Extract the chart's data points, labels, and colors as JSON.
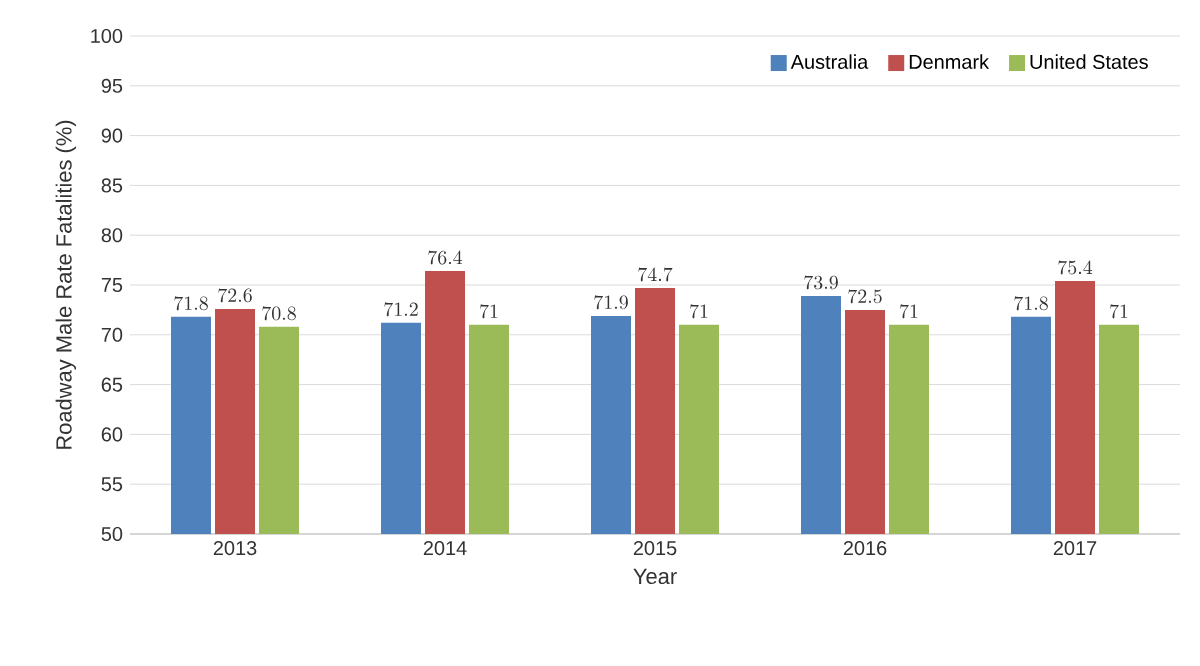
{
  "chart_data": {
    "type": "bar",
    "xlabel": "Year",
    "ylabel": "Roadway Male Rate Fatalities (%)",
    "categories": [
      "2013",
      "2014",
      "2015",
      "2016",
      "2017"
    ],
    "series": [
      {
        "name": "Australia",
        "color": "#4f81bd",
        "values": [
          71.8,
          71.2,
          71.9,
          73.9,
          71.8
        ]
      },
      {
        "name": "Denmark",
        "color": "#c0504d",
        "values": [
          72.6,
          76.4,
          74.7,
          72.5,
          75.4
        ]
      },
      {
        "name": "United States",
        "color": "#9bbb59",
        "values": [
          70.8,
          71,
          71,
          71,
          71
        ]
      }
    ],
    "ylim": [
      50,
      100
    ],
    "yticks": [
      50,
      55,
      60,
      65,
      70,
      75,
      80,
      85,
      90,
      95,
      100
    ],
    "grid": "y",
    "legend": "top right",
    "data_labels": true
  }
}
